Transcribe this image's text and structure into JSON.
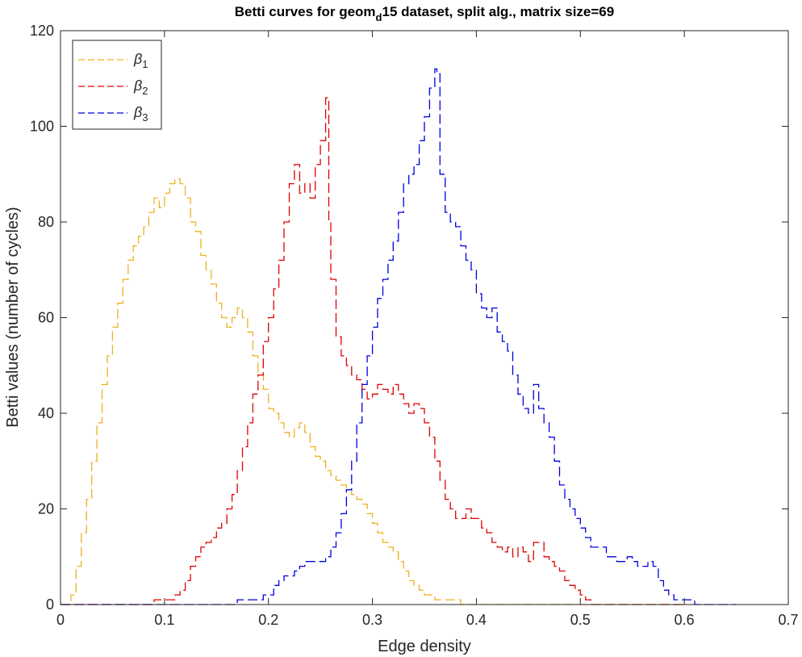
{
  "chart_data": {
    "type": "line",
    "title": {
      "main": "Betti curves for geom",
      "sub": "d",
      "rest": "15 dataset, split alg., matrix size=69"
    },
    "xlabel": "Edge density",
    "ylabel": "Betti values (number of cycles)",
    "xlim": [
      0,
      0.7
    ],
    "ylim": [
      0,
      120
    ],
    "xticks": [
      0,
      0.1,
      0.2,
      0.3,
      0.4,
      0.5,
      0.6,
      0.7
    ],
    "xtick_labels": [
      "0",
      "0.1",
      "0.2",
      "0.3",
      "0.4",
      "0.5",
      "0.6",
      "0.7"
    ],
    "yticks": [
      0,
      20,
      40,
      60,
      80,
      100,
      120
    ],
    "ytick_labels": [
      "0",
      "20",
      "40",
      "60",
      "80",
      "100",
      "120"
    ],
    "grid": false,
    "legend_position": "top-left",
    "line_style": "dashed",
    "series": [
      {
        "name": {
          "symbol": "β",
          "sub": "1"
        },
        "color": "#EDB120",
        "points": [
          [
            0,
            0
          ],
          [
            0.005,
            0
          ],
          [
            0.01,
            2
          ],
          [
            0.015,
            8
          ],
          [
            0.02,
            15
          ],
          [
            0.025,
            22
          ],
          [
            0.03,
            30
          ],
          [
            0.035,
            38
          ],
          [
            0.04,
            46
          ],
          [
            0.045,
            52
          ],
          [
            0.05,
            58
          ],
          [
            0.055,
            63
          ],
          [
            0.06,
            68
          ],
          [
            0.065,
            72
          ],
          [
            0.07,
            75
          ],
          [
            0.075,
            77
          ],
          [
            0.08,
            79
          ],
          [
            0.085,
            82
          ],
          [
            0.09,
            85
          ],
          [
            0.095,
            83
          ],
          [
            0.1,
            86
          ],
          [
            0.105,
            88
          ],
          [
            0.11,
            89
          ],
          [
            0.115,
            88
          ],
          [
            0.12,
            85
          ],
          [
            0.125,
            80
          ],
          [
            0.13,
            78
          ],
          [
            0.135,
            73
          ],
          [
            0.14,
            70
          ],
          [
            0.145,
            67
          ],
          [
            0.15,
            63
          ],
          [
            0.155,
            60
          ],
          [
            0.16,
            58
          ],
          [
            0.165,
            60
          ],
          [
            0.17,
            62
          ],
          [
            0.175,
            60
          ],
          [
            0.18,
            57
          ],
          [
            0.185,
            52
          ],
          [
            0.19,
            48
          ],
          [
            0.195,
            45
          ],
          [
            0.2,
            41
          ],
          [
            0.205,
            40
          ],
          [
            0.21,
            38
          ],
          [
            0.215,
            36
          ],
          [
            0.22,
            35
          ],
          [
            0.225,
            37
          ],
          [
            0.23,
            38
          ],
          [
            0.235,
            36
          ],
          [
            0.24,
            33
          ],
          [
            0.245,
            31
          ],
          [
            0.25,
            30
          ],
          [
            0.255,
            28
          ],
          [
            0.26,
            27
          ],
          [
            0.265,
            26
          ],
          [
            0.27,
            25
          ],
          [
            0.275,
            24
          ],
          [
            0.28,
            23
          ],
          [
            0.285,
            22
          ],
          [
            0.29,
            21
          ],
          [
            0.295,
            19
          ],
          [
            0.3,
            17
          ],
          [
            0.305,
            15
          ],
          [
            0.31,
            13
          ],
          [
            0.315,
            12
          ],
          [
            0.32,
            11
          ],
          [
            0.325,
            9
          ],
          [
            0.33,
            7
          ],
          [
            0.335,
            5
          ],
          [
            0.34,
            4
          ],
          [
            0.345,
            3
          ],
          [
            0.35,
            2
          ],
          [
            0.355,
            2
          ],
          [
            0.36,
            1
          ],
          [
            0.37,
            1
          ],
          [
            0.38,
            1
          ],
          [
            0.385,
            0
          ],
          [
            0.4,
            0
          ],
          [
            0.45,
            0
          ],
          [
            0.5,
            0
          ],
          [
            0.55,
            0
          ],
          [
            0.6,
            0
          ]
        ]
      },
      {
        "name": {
          "symbol": "β",
          "sub": "2"
        },
        "color": "#E00000",
        "points": [
          [
            0,
            0
          ],
          [
            0.05,
            0
          ],
          [
            0.08,
            0
          ],
          [
            0.09,
            1
          ],
          [
            0.1,
            1
          ],
          [
            0.11,
            2
          ],
          [
            0.115,
            3
          ],
          [
            0.12,
            5
          ],
          [
            0.125,
            8
          ],
          [
            0.13,
            10
          ],
          [
            0.135,
            12
          ],
          [
            0.14,
            13
          ],
          [
            0.145,
            14
          ],
          [
            0.15,
            16
          ],
          [
            0.155,
            17
          ],
          [
            0.16,
            20
          ],
          [
            0.165,
            23
          ],
          [
            0.17,
            28
          ],
          [
            0.175,
            33
          ],
          [
            0.18,
            38
          ],
          [
            0.185,
            44
          ],
          [
            0.19,
            48
          ],
          [
            0.195,
            55
          ],
          [
            0.2,
            60
          ],
          [
            0.205,
            66
          ],
          [
            0.21,
            72
          ],
          [
            0.215,
            80
          ],
          [
            0.22,
            88
          ],
          [
            0.225,
            92
          ],
          [
            0.23,
            86
          ],
          [
            0.235,
            88
          ],
          [
            0.24,
            85
          ],
          [
            0.245,
            92
          ],
          [
            0.25,
            97
          ],
          [
            0.255,
            106
          ],
          [
            0.258,
            80
          ],
          [
            0.26,
            68
          ],
          [
            0.265,
            56
          ],
          [
            0.27,
            52
          ],
          [
            0.275,
            50
          ],
          [
            0.28,
            48
          ],
          [
            0.285,
            47
          ],
          [
            0.29,
            45
          ],
          [
            0.295,
            43
          ],
          [
            0.3,
            44
          ],
          [
            0.305,
            46
          ],
          [
            0.31,
            45
          ],
          [
            0.315,
            44
          ],
          [
            0.32,
            46
          ],
          [
            0.325,
            44
          ],
          [
            0.33,
            42
          ],
          [
            0.335,
            40
          ],
          [
            0.34,
            42
          ],
          [
            0.345,
            41
          ],
          [
            0.35,
            38
          ],
          [
            0.355,
            35
          ],
          [
            0.36,
            30
          ],
          [
            0.365,
            26
          ],
          [
            0.37,
            22
          ],
          [
            0.375,
            20
          ],
          [
            0.38,
            18
          ],
          [
            0.385,
            18
          ],
          [
            0.39,
            20
          ],
          [
            0.395,
            18
          ],
          [
            0.4,
            18
          ],
          [
            0.405,
            16
          ],
          [
            0.41,
            15
          ],
          [
            0.415,
            13
          ],
          [
            0.42,
            12
          ],
          [
            0.425,
            11
          ],
          [
            0.43,
            12
          ],
          [
            0.435,
            10
          ],
          [
            0.44,
            12
          ],
          [
            0.445,
            11
          ],
          [
            0.45,
            9
          ],
          [
            0.455,
            13
          ],
          [
            0.46,
            13
          ],
          [
            0.465,
            10
          ],
          [
            0.47,
            9
          ],
          [
            0.475,
            8
          ],
          [
            0.48,
            7
          ],
          [
            0.485,
            5
          ],
          [
            0.49,
            4
          ],
          [
            0.495,
            3
          ],
          [
            0.5,
            2
          ],
          [
            0.505,
            1
          ],
          [
            0.51,
            0
          ],
          [
            0.55,
            0
          ],
          [
            0.6,
            0
          ]
        ]
      },
      {
        "name": {
          "symbol": "β",
          "sub": "3"
        },
        "color": "#0000E0",
        "points": [
          [
            0,
            0
          ],
          [
            0.1,
            0
          ],
          [
            0.15,
            0
          ],
          [
            0.16,
            0
          ],
          [
            0.17,
            1
          ],
          [
            0.18,
            1
          ],
          [
            0.19,
            1
          ],
          [
            0.195,
            2
          ],
          [
            0.2,
            2
          ],
          [
            0.205,
            4
          ],
          [
            0.21,
            5
          ],
          [
            0.215,
            6
          ],
          [
            0.22,
            6
          ],
          [
            0.225,
            7
          ],
          [
            0.23,
            8
          ],
          [
            0.235,
            9
          ],
          [
            0.24,
            9
          ],
          [
            0.245,
            9
          ],
          [
            0.25,
            9
          ],
          [
            0.255,
            10
          ],
          [
            0.26,
            12
          ],
          [
            0.265,
            15
          ],
          [
            0.27,
            19
          ],
          [
            0.275,
            24
          ],
          [
            0.28,
            30
          ],
          [
            0.285,
            38
          ],
          [
            0.29,
            46
          ],
          [
            0.295,
            52
          ],
          [
            0.3,
            58
          ],
          [
            0.305,
            64
          ],
          [
            0.31,
            68
          ],
          [
            0.315,
            72
          ],
          [
            0.32,
            76
          ],
          [
            0.325,
            82
          ],
          [
            0.33,
            88
          ],
          [
            0.335,
            90
          ],
          [
            0.34,
            92
          ],
          [
            0.345,
            97
          ],
          [
            0.35,
            102
          ],
          [
            0.355,
            108
          ],
          [
            0.36,
            112
          ],
          [
            0.362,
            111
          ],
          [
            0.365,
            90
          ],
          [
            0.37,
            82
          ],
          [
            0.375,
            80
          ],
          [
            0.38,
            79
          ],
          [
            0.385,
            75
          ],
          [
            0.39,
            72
          ],
          [
            0.395,
            70
          ],
          [
            0.4,
            65
          ],
          [
            0.405,
            62
          ],
          [
            0.41,
            60
          ],
          [
            0.415,
            62
          ],
          [
            0.42,
            57
          ],
          [
            0.425,
            55
          ],
          [
            0.43,
            53
          ],
          [
            0.435,
            48
          ],
          [
            0.44,
            44
          ],
          [
            0.445,
            41
          ],
          [
            0.45,
            40
          ],
          [
            0.455,
            46
          ],
          [
            0.46,
            41
          ],
          [
            0.465,
            38
          ],
          [
            0.47,
            35
          ],
          [
            0.475,
            30
          ],
          [
            0.48,
            25
          ],
          [
            0.485,
            22
          ],
          [
            0.49,
            20
          ],
          [
            0.495,
            18
          ],
          [
            0.5,
            16
          ],
          [
            0.505,
            14
          ],
          [
            0.51,
            12
          ],
          [
            0.515,
            12
          ],
          [
            0.52,
            12
          ],
          [
            0.525,
            10
          ],
          [
            0.53,
            10
          ],
          [
            0.535,
            9
          ],
          [
            0.54,
            9
          ],
          [
            0.545,
            10
          ],
          [
            0.55,
            9
          ],
          [
            0.555,
            8
          ],
          [
            0.56,
            8
          ],
          [
            0.565,
            9
          ],
          [
            0.57,
            8
          ],
          [
            0.575,
            5
          ],
          [
            0.58,
            3
          ],
          [
            0.585,
            2
          ],
          [
            0.59,
            1
          ],
          [
            0.6,
            1
          ],
          [
            0.61,
            0
          ],
          [
            0.65,
            0
          ]
        ]
      }
    ]
  }
}
